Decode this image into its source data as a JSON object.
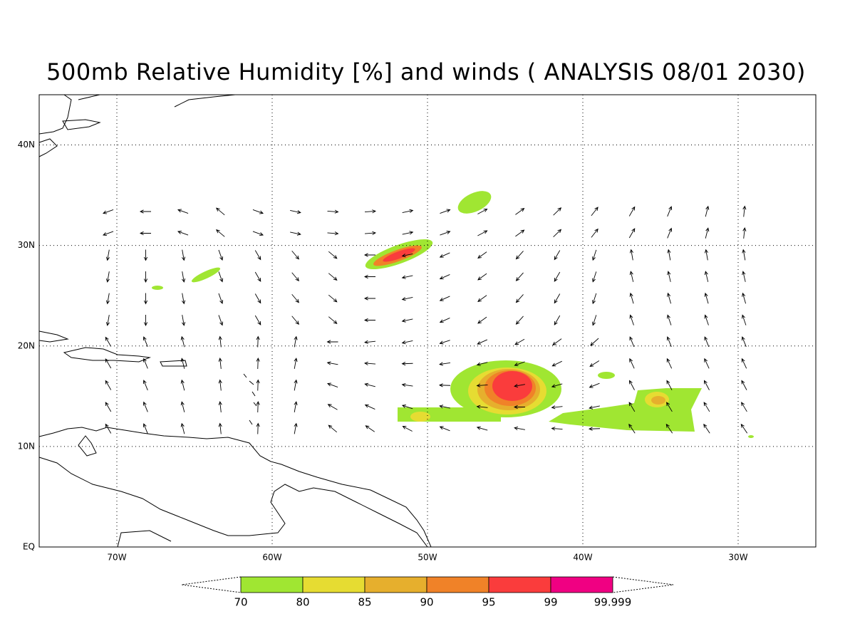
{
  "title": "500mb Relative Humidity [%] and winds ( ANALYSIS 08/01 2030)",
  "map": {
    "xlim": [
      -75,
      -25
    ],
    "ylim": [
      0,
      45
    ],
    "xticks": [
      {
        "value": -70,
        "label": "70W"
      },
      {
        "value": -60,
        "label": "60W"
      },
      {
        "value": -50,
        "label": "50W"
      },
      {
        "value": -40,
        "label": "40W"
      },
      {
        "value": -30,
        "label": "30W"
      }
    ],
    "yticks": [
      {
        "value": 0,
        "label": "EQ"
      },
      {
        "value": 10,
        "label": "10N"
      },
      {
        "value": 20,
        "label": "20N"
      },
      {
        "value": 30,
        "label": "30N"
      },
      {
        "value": 40,
        "label": "40N"
      }
    ],
    "grid": true
  },
  "colorbar": {
    "levels": [
      70,
      80,
      85,
      90,
      95,
      99,
      99.999
    ],
    "colors": [
      "#a0e632",
      "#e6dc32",
      "#e6af2d",
      "#f08228",
      "#fa3c3c",
      "#f00082"
    ]
  }
}
